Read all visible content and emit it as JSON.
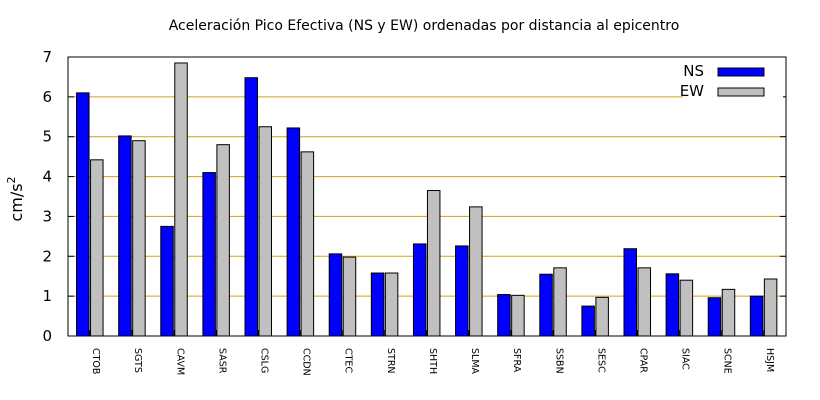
{
  "chart_data": {
    "type": "bar",
    "title": "Aceleración Pico Efectiva (NS y EW) ordenadas por distancia al epicentro",
    "xlabel": "",
    "ylabel": "cm/s",
    "ylabel_superscript": "2",
    "ylim": [
      0,
      7
    ],
    "yticks": [
      "0",
      "1",
      "2",
      "3",
      "4",
      "5",
      "6",
      "7"
    ],
    "grid": true,
    "legend_position": "top-right",
    "categories": [
      "CTOB",
      "SGTS",
      "CAVM",
      "SASR",
      "CSLG",
      "CCDN",
      "CTEC",
      "STRN",
      "SHTH",
      "SLMA",
      "SFRA",
      "SSBN",
      "SESC",
      "CPAR",
      "SIAC",
      "SCNE",
      "HSJM"
    ],
    "series": [
      {
        "name": "NS",
        "color": "#0000ff",
        "values": [
          6.1,
          5.02,
          2.75,
          4.1,
          6.48,
          5.22,
          2.06,
          1.58,
          2.31,
          2.26,
          1.04,
          1.55,
          0.75,
          2.19,
          1.56,
          0.96,
          1.0
        ]
      },
      {
        "name": "EW",
        "color": "#c0c0c0",
        "values": [
          4.42,
          4.9,
          6.85,
          4.8,
          5.25,
          4.62,
          1.98,
          1.58,
          3.65,
          3.24,
          1.02,
          1.71,
          0.97,
          1.71,
          1.4,
          1.17,
          1.43
        ]
      }
    ],
    "grid_color": "#d4a017"
  }
}
